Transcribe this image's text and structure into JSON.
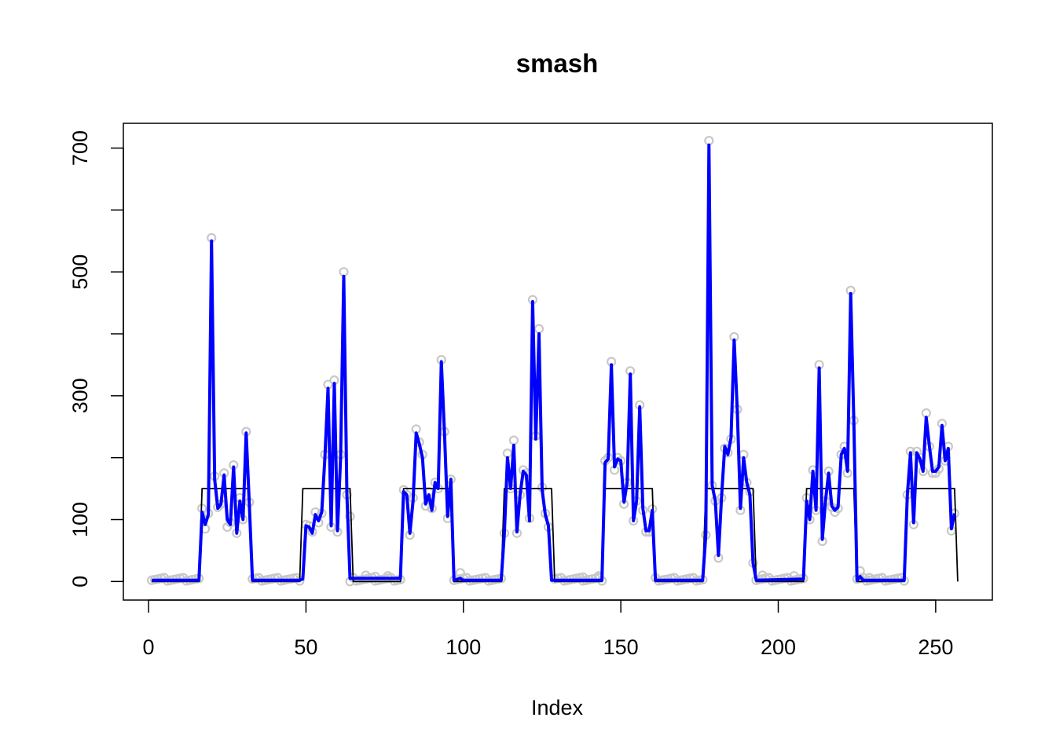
{
  "chart_data": {
    "type": "line",
    "title": "smash",
    "xlabel": "Index",
    "ylabel": "",
    "xlim": [
      -8,
      268
    ],
    "ylim": [
      -30,
      740
    ],
    "x_ticks": [
      0,
      50,
      100,
      150,
      200,
      250
    ],
    "x_tick_labels": [
      "0",
      "50",
      "100",
      "150",
      "200",
      "250"
    ],
    "y_ticks": [
      0,
      100,
      200,
      300,
      400,
      500,
      600,
      700
    ],
    "y_tick_labels": [
      "0",
      "100",
      "",
      "300",
      "",
      "500",
      "",
      "700"
    ],
    "grid": false,
    "legend": "none",
    "colors": {
      "points": "#c8c8c8",
      "estimate": "#0000ff",
      "truth": "#000000"
    },
    "truth_step": {
      "low": 0,
      "high": 150,
      "high_segments": [
        [
          17,
          32
        ],
        [
          49,
          64
        ],
        [
          81,
          96
        ],
        [
          113,
          128
        ],
        [
          145,
          160
        ],
        [
          177,
          192
        ],
        [
          209,
          224
        ],
        [
          241,
          256
        ]
      ]
    },
    "observations": [
      {
        "x": 17,
        "y": 118
      },
      {
        "x": 18,
        "y": 85
      },
      {
        "x": 19,
        "y": 110
      },
      {
        "x": 20,
        "y": 555
      },
      {
        "x": 21,
        "y": 170
      },
      {
        "x": 22,
        "y": 120
      },
      {
        "x": 23,
        "y": 125
      },
      {
        "x": 24,
        "y": 175
      },
      {
        "x": 25,
        "y": 88
      },
      {
        "x": 26,
        "y": 95
      },
      {
        "x": 27,
        "y": 188
      },
      {
        "x": 28,
        "y": 78
      },
      {
        "x": 29,
        "y": 135
      },
      {
        "x": 30,
        "y": 100
      },
      {
        "x": 31,
        "y": 242
      },
      {
        "x": 32,
        "y": 128
      },
      {
        "x": 50,
        "y": 92
      },
      {
        "x": 51,
        "y": 90
      },
      {
        "x": 52,
        "y": 80
      },
      {
        "x": 53,
        "y": 112
      },
      {
        "x": 54,
        "y": 95
      },
      {
        "x": 55,
        "y": 110
      },
      {
        "x": 56,
        "y": 205
      },
      {
        "x": 57,
        "y": 318
      },
      {
        "x": 58,
        "y": 88
      },
      {
        "x": 59,
        "y": 325
      },
      {
        "x": 60,
        "y": 80
      },
      {
        "x": 61,
        "y": 205
      },
      {
        "x": 62,
        "y": 500
      },
      {
        "x": 63,
        "y": 140
      },
      {
        "x": 64,
        "y": 105
      },
      {
        "x": 81,
        "y": 148
      },
      {
        "x": 82,
        "y": 140
      },
      {
        "x": 83,
        "y": 75
      },
      {
        "x": 84,
        "y": 135
      },
      {
        "x": 85,
        "y": 246
      },
      {
        "x": 86,
        "y": 225
      },
      {
        "x": 87,
        "y": 205
      },
      {
        "x": 88,
        "y": 122
      },
      {
        "x": 89,
        "y": 145
      },
      {
        "x": 90,
        "y": 118
      },
      {
        "x": 91,
        "y": 160
      },
      {
        "x": 92,
        "y": 150
      },
      {
        "x": 93,
        "y": 358
      },
      {
        "x": 94,
        "y": 242
      },
      {
        "x": 95,
        "y": 102
      },
      {
        "x": 96,
        "y": 165
      },
      {
        "x": 113,
        "y": 78
      },
      {
        "x": 114,
        "y": 207
      },
      {
        "x": 115,
        "y": 150
      },
      {
        "x": 116,
        "y": 228
      },
      {
        "x": 117,
        "y": 78
      },
      {
        "x": 118,
        "y": 140
      },
      {
        "x": 119,
        "y": 180
      },
      {
        "x": 120,
        "y": 175
      },
      {
        "x": 121,
        "y": 102
      },
      {
        "x": 122,
        "y": 455
      },
      {
        "x": 123,
        "y": 235
      },
      {
        "x": 124,
        "y": 408
      },
      {
        "x": 125,
        "y": 152
      },
      {
        "x": 126,
        "y": 110
      },
      {
        "x": 127,
        "y": 88
      },
      {
        "x": 145,
        "y": 195
      },
      {
        "x": 146,
        "y": 200
      },
      {
        "x": 147,
        "y": 355
      },
      {
        "x": 148,
        "y": 180
      },
      {
        "x": 149,
        "y": 200
      },
      {
        "x": 150,
        "y": 195
      },
      {
        "x": 151,
        "y": 125
      },
      {
        "x": 152,
        "y": 160
      },
      {
        "x": 153,
        "y": 340
      },
      {
        "x": 154,
        "y": 98
      },
      {
        "x": 155,
        "y": 130
      },
      {
        "x": 156,
        "y": 285
      },
      {
        "x": 157,
        "y": 115
      },
      {
        "x": 158,
        "y": 80
      },
      {
        "x": 159,
        "y": 80
      },
      {
        "x": 160,
        "y": 117
      },
      {
        "x": 177,
        "y": 75
      },
      {
        "x": 178,
        "y": 712
      },
      {
        "x": 179,
        "y": 155
      },
      {
        "x": 180,
        "y": 130
      },
      {
        "x": 181,
        "y": 38
      },
      {
        "x": 182,
        "y": 135
      },
      {
        "x": 183,
        "y": 215
      },
      {
        "x": 184,
        "y": 208
      },
      {
        "x": 185,
        "y": 230
      },
      {
        "x": 186,
        "y": 395
      },
      {
        "x": 187,
        "y": 278
      },
      {
        "x": 188,
        "y": 115
      },
      {
        "x": 189,
        "y": 205
      },
      {
        "x": 190,
        "y": 160
      },
      {
        "x": 191,
        "y": 145
      },
      {
        "x": 192,
        "y": 30
      },
      {
        "x": 209,
        "y": 135
      },
      {
        "x": 210,
        "y": 100
      },
      {
        "x": 211,
        "y": 180
      },
      {
        "x": 212,
        "y": 115
      },
      {
        "x": 213,
        "y": 350
      },
      {
        "x": 214,
        "y": 65
      },
      {
        "x": 215,
        "y": 130
      },
      {
        "x": 216,
        "y": 178
      },
      {
        "x": 217,
        "y": 120
      },
      {
        "x": 218,
        "y": 112
      },
      {
        "x": 219,
        "y": 118
      },
      {
        "x": 220,
        "y": 205
      },
      {
        "x": 221,
        "y": 218
      },
      {
        "x": 222,
        "y": 175
      },
      {
        "x": 223,
        "y": 470
      },
      {
        "x": 224,
        "y": 260
      },
      {
        "x": 241,
        "y": 140
      },
      {
        "x": 242,
        "y": 210
      },
      {
        "x": 243,
        "y": 92
      },
      {
        "x": 244,
        "y": 210
      },
      {
        "x": 245,
        "y": 200
      },
      {
        "x": 246,
        "y": 178
      },
      {
        "x": 247,
        "y": 272
      },
      {
        "x": 248,
        "y": 218
      },
      {
        "x": 249,
        "y": 175
      },
      {
        "x": 250,
        "y": 175
      },
      {
        "x": 251,
        "y": 182
      },
      {
        "x": 252,
        "y": 255
      },
      {
        "x": 253,
        "y": 195
      },
      {
        "x": 254,
        "y": 218
      },
      {
        "x": 255,
        "y": 82
      },
      {
        "x": 256,
        "y": 110
      }
    ],
    "zero_region_points": [
      {
        "x": 64,
        "y": 0
      },
      {
        "x": 69,
        "y": 10
      },
      {
        "x": 72,
        "y": 8
      },
      {
        "x": 76,
        "y": 9
      },
      {
        "x": 99,
        "y": 14
      },
      {
        "x": 138,
        "y": 7
      },
      {
        "x": 143,
        "y": 9
      },
      {
        "x": 195,
        "y": 10
      },
      {
        "x": 205,
        "y": 9
      },
      {
        "x": 226,
        "y": 17
      },
      {
        "x": 229,
        "y": 6
      }
    ],
    "series": [
      {
        "values": [
          [
            1,
            2
          ],
          [
            16,
            2
          ],
          [
            17,
            112
          ],
          [
            18,
            92
          ],
          [
            19,
            108
          ],
          [
            20,
            550
          ],
          [
            21,
            165
          ],
          [
            22,
            118
          ],
          [
            23,
            125
          ],
          [
            24,
            172
          ],
          [
            25,
            100
          ],
          [
            26,
            92
          ],
          [
            27,
            185
          ],
          [
            28,
            78
          ],
          [
            29,
            130
          ],
          [
            30,
            100
          ],
          [
            31,
            240
          ],
          [
            32,
            125
          ],
          [
            33,
            2
          ],
          [
            48,
            2
          ],
          [
            49,
            4
          ],
          [
            50,
            90
          ],
          [
            51,
            88
          ],
          [
            52,
            78
          ],
          [
            53,
            108
          ],
          [
            54,
            98
          ],
          [
            55,
            112
          ],
          [
            56,
            200
          ],
          [
            57,
            312
          ],
          [
            58,
            90
          ],
          [
            59,
            320
          ],
          [
            60,
            82
          ],
          [
            61,
            200
          ],
          [
            62,
            493
          ],
          [
            63,
            140
          ],
          [
            64,
            5
          ],
          [
            80,
            5
          ],
          [
            81,
            145
          ],
          [
            82,
            140
          ],
          [
            83,
            78
          ],
          [
            84,
            130
          ],
          [
            85,
            240
          ],
          [
            86,
            222
          ],
          [
            87,
            200
          ],
          [
            88,
            125
          ],
          [
            89,
            140
          ],
          [
            90,
            115
          ],
          [
            91,
            160
          ],
          [
            92,
            150
          ],
          [
            93,
            355
          ],
          [
            94,
            240
          ],
          [
            95,
            105
          ],
          [
            96,
            165
          ],
          [
            97,
            2
          ],
          [
            99,
            5
          ],
          [
            100,
            2
          ],
          [
            112,
            2
          ],
          [
            113,
            78
          ],
          [
            114,
            200
          ],
          [
            115,
            150
          ],
          [
            116,
            220
          ],
          [
            117,
            80
          ],
          [
            118,
            140
          ],
          [
            119,
            178
          ],
          [
            120,
            172
          ],
          [
            121,
            98
          ],
          [
            122,
            452
          ],
          [
            123,
            230
          ],
          [
            124,
            400
          ],
          [
            125,
            148
          ],
          [
            126,
            108
          ],
          [
            127,
            90
          ],
          [
            128,
            2
          ],
          [
            144,
            2
          ],
          [
            145,
            192
          ],
          [
            146,
            198
          ],
          [
            147,
            350
          ],
          [
            148,
            185
          ],
          [
            149,
            198
          ],
          [
            150,
            195
          ],
          [
            151,
            128
          ],
          [
            152,
            160
          ],
          [
            153,
            335
          ],
          [
            154,
            98
          ],
          [
            155,
            130
          ],
          [
            156,
            282
          ],
          [
            157,
            118
          ],
          [
            158,
            82
          ],
          [
            159,
            82
          ],
          [
            160,
            115
          ],
          [
            161,
            2
          ],
          [
            176,
            2
          ],
          [
            177,
            75
          ],
          [
            178,
            705
          ],
          [
            179,
            155
          ],
          [
            180,
            130
          ],
          [
            181,
            42
          ],
          [
            182,
            138
          ],
          [
            183,
            218
          ],
          [
            184,
            205
          ],
          [
            185,
            232
          ],
          [
            186,
            390
          ],
          [
            187,
            275
          ],
          [
            188,
            118
          ],
          [
            189,
            200
          ],
          [
            190,
            160
          ],
          [
            191,
            140
          ],
          [
            192,
            30
          ],
          [
            193,
            2
          ],
          [
            208,
            4
          ],
          [
            209,
            130
          ],
          [
            210,
            100
          ],
          [
            211,
            178
          ],
          [
            212,
            115
          ],
          [
            213,
            345
          ],
          [
            214,
            68
          ],
          [
            215,
            130
          ],
          [
            216,
            175
          ],
          [
            217,
            122
          ],
          [
            218,
            115
          ],
          [
            219,
            120
          ],
          [
            220,
            205
          ],
          [
            221,
            215
          ],
          [
            222,
            178
          ],
          [
            223,
            465
          ],
          [
            224,
            258
          ],
          [
            225,
            2
          ],
          [
            226,
            8
          ],
          [
            227,
            2
          ],
          [
            240,
            2
          ],
          [
            241,
            140
          ],
          [
            242,
            208
          ],
          [
            243,
            95
          ],
          [
            244,
            208
          ],
          [
            245,
            198
          ],
          [
            246,
            178
          ],
          [
            247,
            265
          ],
          [
            248,
            218
          ],
          [
            249,
            178
          ],
          [
            250,
            178
          ],
          [
            251,
            185
          ],
          [
            252,
            252
          ],
          [
            253,
            195
          ],
          [
            254,
            215
          ],
          [
            255,
            85
          ],
          [
            256,
            110
          ]
        ]
      }
    ]
  }
}
